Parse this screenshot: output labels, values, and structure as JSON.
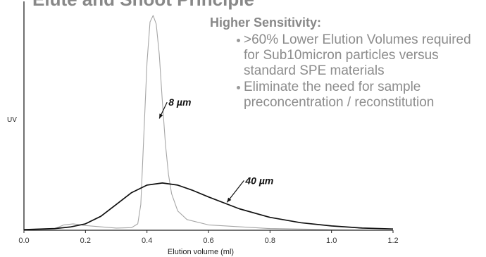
{
  "slide_title": "Elute and Shoot Principle",
  "bullets": {
    "heading": "Higher Sensitivity:",
    "items": [
      ">60% Lower Elution Volumes required for Sub10micron particles versus standard SPE materials",
      "Eliminate the need for sample preconcentration / reconstitution"
    ]
  },
  "chart_data": {
    "type": "line",
    "xlabel": "Elution volume (ml)",
    "ylabel": "UV",
    "xlim": [
      0.0,
      1.2
    ],
    "ylim": [
      0,
      100
    ],
    "xticks": [
      "0.0",
      "0.2",
      "0.4",
      "0.6",
      "0.8",
      "1.0",
      "1.2"
    ],
    "grid": false,
    "colors": {
      "8um": "#a6a6a6",
      "40um": "#111111",
      "axis": "#222222"
    },
    "series": [
      {
        "name": "8 µm",
        "x": [
          0.0,
          0.1,
          0.13,
          0.16,
          0.2,
          0.3,
          0.35,
          0.37,
          0.38,
          0.39,
          0.4,
          0.41,
          0.42,
          0.43,
          0.44,
          0.45,
          0.46,
          0.47,
          0.48,
          0.5,
          0.53,
          0.6,
          0.8,
          1.0,
          1.2
        ],
        "y": [
          0.3,
          0.8,
          2.5,
          3.0,
          2.2,
          1.0,
          1.2,
          3.0,
          12,
          45,
          78,
          97,
          100,
          96,
          82,
          60,
          40,
          26,
          17,
          9,
          5,
          2.5,
          0.8,
          0.3,
          0.2
        ]
      },
      {
        "name": "40 µm",
        "x": [
          0.0,
          0.1,
          0.15,
          0.2,
          0.25,
          0.3,
          0.35,
          0.4,
          0.45,
          0.5,
          0.55,
          0.6,
          0.7,
          0.8,
          0.9,
          1.0,
          1.1,
          1.2
        ],
        "y": [
          0.3,
          0.8,
          1.5,
          3.0,
          6.5,
          12,
          17.5,
          21,
          22,
          21,
          18.5,
          15.5,
          10,
          6,
          3.5,
          2.0,
          1.0,
          0.6
        ]
      }
    ],
    "annotations": [
      {
        "text": "8 µm",
        "x": 0.47,
        "y": 58,
        "target": [
          0.44,
          52
        ]
      },
      {
        "text": "40 µm",
        "x": 0.72,
        "y": 21.5,
        "target": [
          0.66,
          13
        ]
      }
    ]
  }
}
